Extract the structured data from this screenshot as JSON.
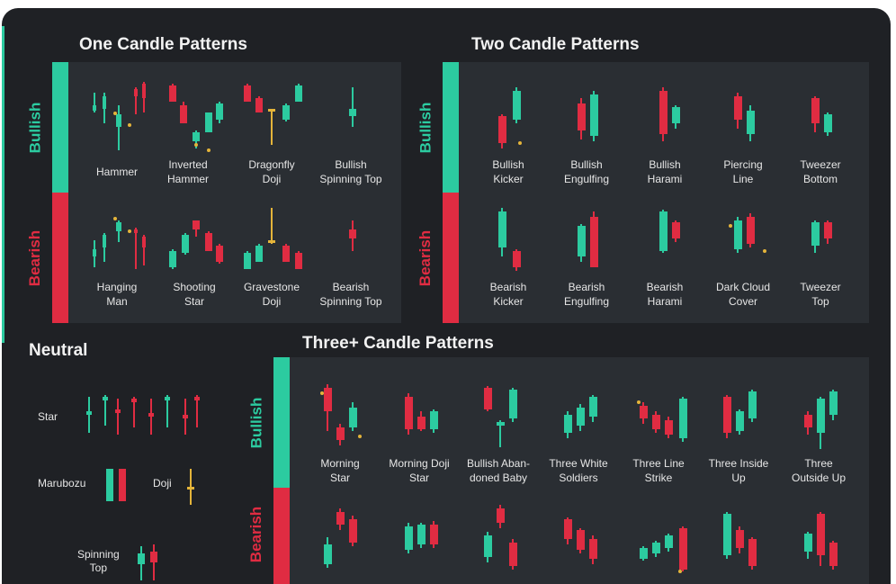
{
  "sections": {
    "one_candle": "One Candle Patterns",
    "two_candle": "Two Candle Patterns",
    "neutral": "Neutral",
    "three_candle": "Three+ Candle Patterns"
  },
  "bands": {
    "bullish": "Bullish",
    "bearish": "Bearish"
  },
  "one_candle": {
    "bullish": [
      "Hammer",
      "Inverted\nHammer",
      "Dragonfly\nDoji",
      "Bullish\nSpinning Top"
    ],
    "bearish": [
      "Hanging\nMan",
      "Shooting\nStar",
      "Gravestone\nDoji",
      "Bearish\nSpinning Top"
    ]
  },
  "two_candle": {
    "bullish": [
      "Bullish\nKicker",
      "Bullish\nEngulfing",
      "Bullish\nHarami",
      "Piercing\nLine",
      "Tweezer\nBottom"
    ],
    "bearish": [
      "Bearish\nKicker",
      "Bearish\nEngulfing",
      "Bearish\nHarami",
      "Dark Cloud\nCover",
      "Tweezer\nTop"
    ]
  },
  "neutral": {
    "star": "Star",
    "marubozu": "Marubozu",
    "doji": "Doji",
    "spinning_top": "Spinning\nTop"
  },
  "three_candle": {
    "bullish": [
      "Morning\nStar",
      "Morning Doji\nStar",
      "Bullish Aban-\ndoned Baby",
      "Three White\nSoldiers",
      "Three Line\nStrike",
      "Three Inside\nUp",
      "Three\nOutside Up"
    ]
  },
  "colors": {
    "bullish": "#2ccba0",
    "bearish": "#e02c42",
    "accent": "#e4b43a",
    "panel": "#2a2e33",
    "background": "#1f2125"
  }
}
